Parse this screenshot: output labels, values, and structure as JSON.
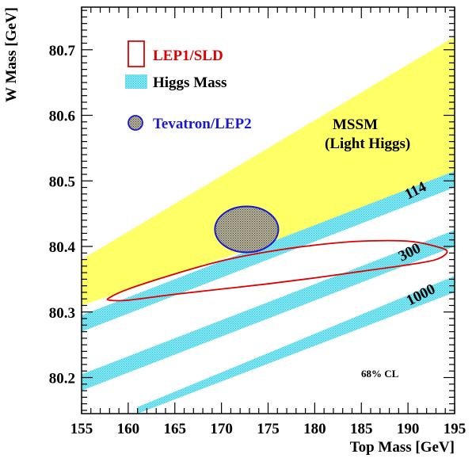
{
  "chart_data": {
    "type": "line",
    "xlabel": "Top Mass [GeV]",
    "ylabel": "W Mass [GeV]",
    "xlim": [
      155,
      195
    ],
    "ylim": [
      80.145,
      80.765
    ],
    "x_ticks": [
      "155",
      "160",
      "165",
      "170",
      "175",
      "180",
      "185",
      "190",
      "195"
    ],
    "y_ticks": [
      "80.2",
      "80.3",
      "80.4",
      "80.5",
      "80.6",
      "80.7"
    ],
    "mssm_band": {
      "label_line1": "MSSM",
      "label_line2": "(Light Higgs)",
      "color": "#ffff66",
      "upper_edge": [
        [
          155,
          80.38
        ],
        [
          195,
          80.72
        ]
      ],
      "lower_edge": [
        [
          155,
          80.31
        ],
        [
          195,
          80.5
        ]
      ]
    },
    "higgs_bands": [
      {
        "label": "114",
        "x": [
          155,
          195
        ],
        "upper": [
          80.295,
          80.515
        ],
        "lower": [
          80.27,
          80.49
        ]
      },
      {
        "label": "300",
        "x": [
          155,
          195
        ],
        "upper": [
          80.205,
          80.425
        ],
        "lower": [
          80.18,
          80.4
        ]
      },
      {
        "label": "1000",
        "x": [
          161,
          195
        ],
        "upper": [
          80.155,
          80.355
        ],
        "lower": [
          80.145,
          80.33
        ]
      }
    ],
    "lep1_sld_contour": {
      "color": "#dd0000",
      "points": [
        [
          158.0,
          80.322
        ],
        [
          160,
          80.335
        ],
        [
          165,
          80.358
        ],
        [
          170,
          80.378
        ],
        [
          175,
          80.392
        ],
        [
          180,
          80.402
        ],
        [
          185,
          80.408
        ],
        [
          190,
          80.408
        ],
        [
          193,
          80.4
        ],
        [
          194.2,
          80.392
        ],
        [
          193,
          80.38
        ],
        [
          190,
          80.372
        ],
        [
          185,
          80.362
        ],
        [
          180,
          80.352
        ],
        [
          175,
          80.343
        ],
        [
          170,
          80.335
        ],
        [
          165,
          80.327
        ],
        [
          160,
          80.318
        ],
        [
          158.0,
          80.318
        ]
      ]
    },
    "tevatron_lep2_ellipse": {
      "color": "#1a1acc",
      "center": [
        172.7,
        80.426
      ],
      "half_width_gev": 3.4,
      "half_height_gev": 0.035
    },
    "legend": {
      "placement": "top-left",
      "entries": [
        {
          "label": "LEP1/SLD",
          "color": "#dd0000"
        },
        {
          "label": "Higgs Mass",
          "color": "#222222"
        },
        {
          "label": "Tevatron/LEP2",
          "color": "#1a1acc"
        }
      ]
    },
    "cl_label": "68% CL",
    "colors": {
      "higgs_band": "#66e0ee",
      "mssm": "#ffff66",
      "lep": "#dd0000",
      "tevatron": "#1a1acc",
      "tevatron_fill": "#9a9a8a"
    }
  }
}
